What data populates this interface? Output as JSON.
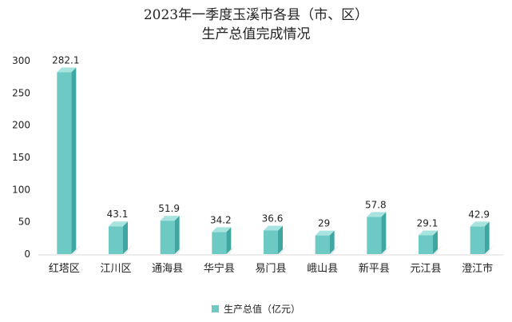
{
  "chart_data": {
    "type": "bar",
    "title_line1": "2023年一季度玉溪市各县（市、区）",
    "title_line2": "生产总值完成情况",
    "categories": [
      "红塔区",
      "江川区",
      "通海县",
      "华宁县",
      "易门县",
      "峨山县",
      "新平县",
      "元江县",
      "澄江市"
    ],
    "series": [
      {
        "name": "生产总值（亿元）",
        "values": [
          282.1,
          43.1,
          51.9,
          34.2,
          36.6,
          29,
          57.8,
          29.1,
          42.9
        ]
      }
    ],
    "value_labels": [
      "282.1",
      "43.1",
      "51.9",
      "34.2",
      "36.6",
      "29",
      "57.8",
      "29.1",
      "42.9"
    ],
    "y_ticks": [
      0,
      50,
      100,
      150,
      200,
      250,
      300
    ],
    "ylim": [
      0,
      300
    ],
    "xlabel": "",
    "ylabel": "",
    "legend_position": "bottom",
    "grid": false,
    "colors": {
      "bar_front": "#6cc9c4",
      "bar_side": "#3fa7a2",
      "bar_top": "#a7e3df",
      "shadow": "#e0e0e0",
      "text": "#222222",
      "floor": "#d9d9d9"
    }
  }
}
